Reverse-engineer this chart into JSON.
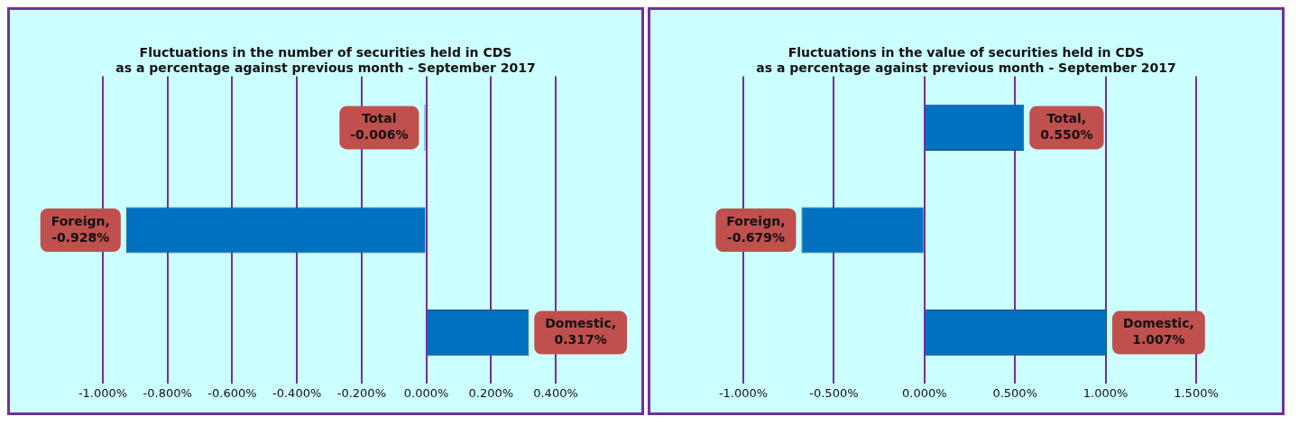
{
  "chart_data": [
    {
      "type": "bar",
      "orientation": "horizontal",
      "title": "Fluctuations in the number of securities held in CDS as a percentage against previous month - September 2017",
      "categories": [
        null,
        null,
        null
      ],
      "values": [
        -0.006,
        -0.928,
        0.317
      ],
      "color": "#0070c0",
      "value_labels": [
        "Total\n-0.006%",
        "Foreign,\n-0.928%",
        "Domestic,\n0.317%"
      ],
      "xlim": [
        -1,
        0.4
      ],
      "xticks": [
        {
          "value": -1,
          "label": "-1.000%"
        },
        {
          "value": -0.8,
          "label": "-0.800%"
        },
        {
          "value": -0.6,
          "label": "-0.600%"
        },
        {
          "value": -0.4,
          "label": "-0.400%"
        },
        {
          "value": -0.2,
          "label": "-0.200%"
        },
        {
          "value": 0,
          "label": "0.000%"
        },
        {
          "value": 0.2,
          "label": "0.200%"
        },
        {
          "value": 0.4,
          "label": "0.400%"
        }
      ],
      "grid": "x",
      "tick_labels": "x",
      "legend": false
    },
    {
      "type": "bar",
      "orientation": "horizontal",
      "title": "Fluctuations in the value of securities held in CDS as a percentage against previous month - September 2017",
      "categories": [
        null,
        null,
        null
      ],
      "values": [
        0.55,
        -0.679,
        1.007
      ],
      "color": "#0070c0",
      "value_labels": [
        "Total,\n0.550%",
        "Foreign,\n-0.679%",
        "Domestic,\n1.007%"
      ],
      "xlim": [
        -1,
        1.5
      ],
      "xticks": [
        {
          "value": -1,
          "label": "-1.000%"
        },
        {
          "value": -0.5,
          "label": "-0.500%"
        },
        {
          "value": 0,
          "label": "0.000%"
        },
        {
          "value": 0.5,
          "label": "0.500%"
        },
        {
          "value": 1,
          "label": "1.000%"
        },
        {
          "value": 1.5,
          "label": "1.500%"
        }
      ],
      "grid": "x",
      "tick_labels": "x",
      "legend": false
    }
  ]
}
